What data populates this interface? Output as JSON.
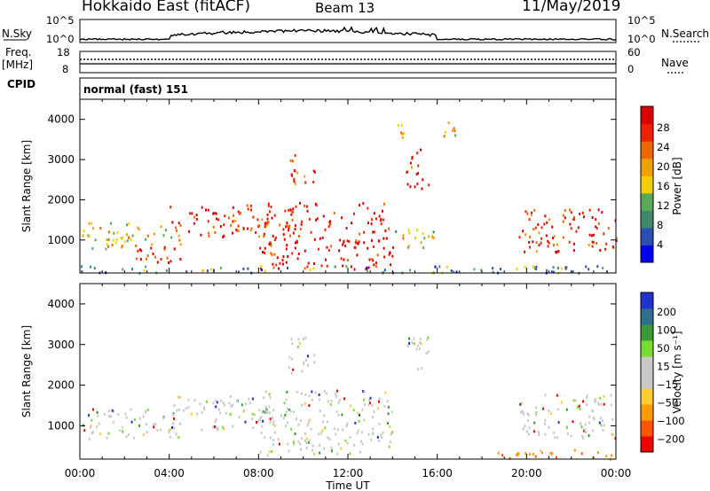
{
  "header": {
    "station": "Hokkaido East (fitACF)",
    "beam": "Beam 13",
    "date": "11/May/2019"
  },
  "top_panels": {
    "nsky_label": "N.Sky",
    "nsky_ticks": [
      "10^5",
      "10^0"
    ],
    "nsky_right_ticks": [
      "10^5",
      "10^0"
    ],
    "nsearch_label": "N.Search",
    "freq_label": "Freq.",
    "freq_unit": "[MHz]",
    "freq_ticks": [
      "18",
      "8"
    ],
    "nave_ticks": [
      "60",
      "0"
    ],
    "nave_label": "Nave",
    "cpid_label": "CPID",
    "cpid_value": "normal (fast) 151"
  },
  "chart_data": [
    {
      "type": "heatmap",
      "name": "power-panel",
      "ylabel": "Slant Range [km]",
      "ylim": [
        180,
        4500
      ],
      "yticks": [
        1000,
        2000,
        3000,
        4000
      ],
      "xlim": [
        "00:00",
        "24:00"
      ],
      "colorbar_label": "Power [dB]",
      "colorbar_ticks": [
        "28",
        "24",
        "20",
        "16",
        "12",
        "8",
        "4"
      ],
      "colorscale": [
        "#0000ee",
        "#2a4fb0",
        "#3e8a6a",
        "#5aa85a",
        "#f0d000",
        "#f0a000",
        "#ee6600",
        "#ee2200",
        "#dd0000"
      ],
      "regions": [
        {
          "t0": 0.1,
          "t1": 4.5,
          "r0": 800,
          "r1": 1450,
          "level": 0.55
        },
        {
          "t0": 2.2,
          "t1": 4.5,
          "r0": 400,
          "r1": 850,
          "level": 0.9
        },
        {
          "t0": 4.0,
          "t1": 8.5,
          "r0": 1100,
          "r1": 1900,
          "level": 0.85
        },
        {
          "t0": 8.0,
          "t1": 14.0,
          "r0": 300,
          "r1": 1950,
          "level": 0.95
        },
        {
          "t0": 14.6,
          "t1": 15.6,
          "r0": 2300,
          "r1": 3300,
          "level": 0.85
        },
        {
          "t0": 14.2,
          "t1": 14.9,
          "r0": 3500,
          "r1": 3950,
          "level": 0.7
        },
        {
          "t0": 16.2,
          "t1": 16.8,
          "r0": 3400,
          "r1": 4000,
          "level": 0.6
        },
        {
          "t0": 9.3,
          "t1": 10.5,
          "r0": 2400,
          "r1": 3200,
          "level": 0.8
        },
        {
          "t0": 19.6,
          "t1": 24.0,
          "r0": 700,
          "r1": 1800,
          "level": 0.85
        },
        {
          "t0": 14.0,
          "t1": 16.0,
          "r0": 800,
          "r1": 1300,
          "level": 0.45
        },
        {
          "t0": 0.0,
          "t1": 24.0,
          "r0": 200,
          "r1": 380,
          "level": 0.3
        }
      ]
    },
    {
      "type": "heatmap",
      "name": "velocity-panel",
      "ylabel": "Slant Range [km]",
      "xlabel": "Time UT",
      "ylim": [
        180,
        4500
      ],
      "yticks": [
        1000,
        2000,
        3000,
        4000
      ],
      "xticks": [
        "00:00",
        "04:00",
        "08:00",
        "12:00",
        "16:00",
        "20:00",
        "00:00"
      ],
      "colorbar_label": "Velocity [m s^-1]",
      "colorbar_ticks": [
        "200",
        "100",
        "50",
        "15",
        "-15",
        "-50",
        "-100",
        "-200"
      ],
      "colorscale": [
        "#ee0000",
        "#ff5500",
        "#ff9900",
        "#ffcc33",
        "#c8c8c8",
        "#c8c8c8",
        "#77dd33",
        "#3a9a3a",
        "#2e6e8e",
        "#2233cc"
      ],
      "regions": [
        {
          "t0": 0.1,
          "t1": 4.5,
          "r0": 700,
          "r1": 1500,
          "level": 0.5
        },
        {
          "t0": 4.0,
          "t1": 8.5,
          "r0": 900,
          "r1": 1800,
          "level": 0.5
        },
        {
          "t0": 8.0,
          "t1": 14.0,
          "r0": 300,
          "r1": 1900,
          "level": 0.5
        },
        {
          "t0": 9.3,
          "t1": 10.5,
          "r0": 2300,
          "r1": 3200,
          "level": 0.5
        },
        {
          "t0": 14.6,
          "t1": 15.6,
          "r0": 2300,
          "r1": 3300,
          "level": 0.5
        },
        {
          "t0": 19.6,
          "t1": 24.0,
          "r0": 700,
          "r1": 1800,
          "level": 0.5
        },
        {
          "t0": 18.6,
          "t1": 24.0,
          "r0": 200,
          "r1": 450,
          "level": 0.2
        }
      ]
    }
  ]
}
